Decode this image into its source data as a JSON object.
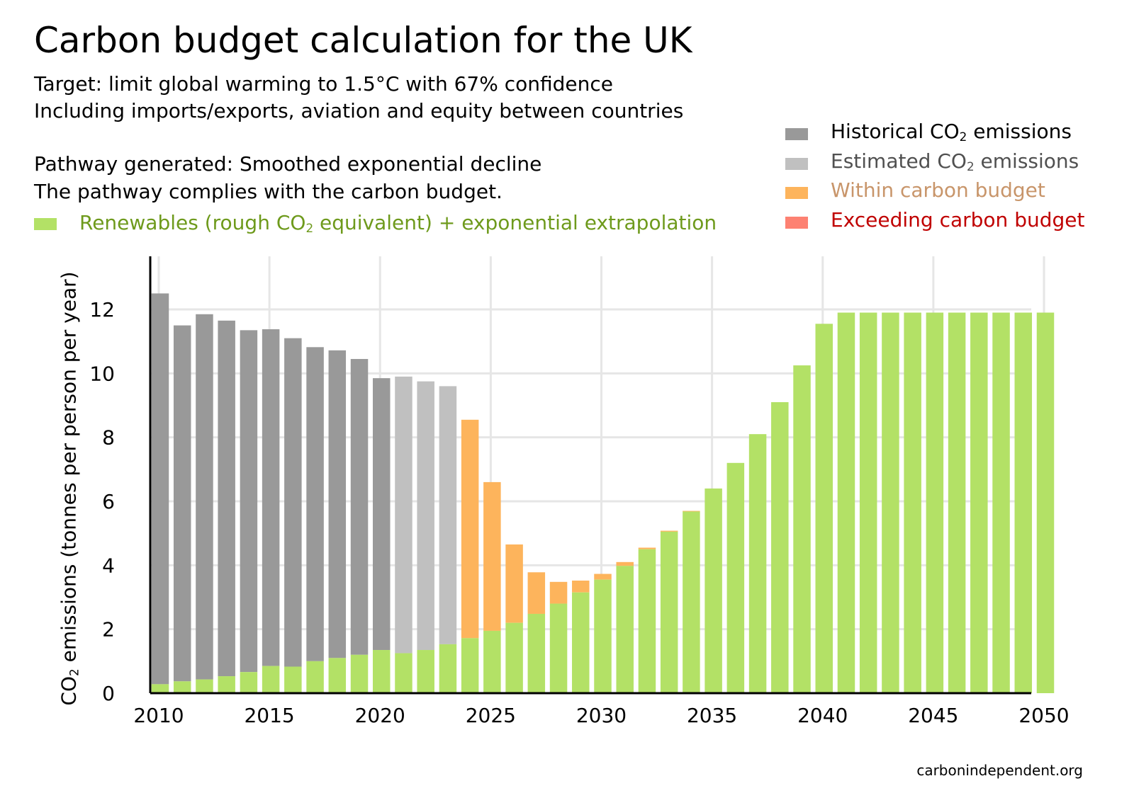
{
  "title": "Carbon budget calculation for the UK",
  "subtitle_lines": [
    "Target: limit global warming to 1.5°C with 67% confidence",
    "Including imports/exports, aviation and equity between countries",
    "Pathway generated: Smoothed exponential decline",
    "The pathway complies with the carbon budget."
  ],
  "legend": {
    "renewables": {
      "label_pre": "Renewables (rough CO",
      "label_sub": "2",
      "label_post": " equivalent) + exponential extrapolation",
      "color": "#b3e166",
      "text_color": "#6e9a1c"
    },
    "historical": {
      "label_pre": "Historical CO",
      "label_sub": "2",
      "label_post": " emissions",
      "color": "#999999",
      "text_color": "#000000"
    },
    "estimated": {
      "label_pre": "Estimated CO",
      "label_sub": "2",
      "label_post": " emissions",
      "color": "#c0c0c0",
      "text_color": "#505050"
    },
    "within": {
      "label": "Within carbon budget",
      "color": "#fdb45c",
      "text_color": "#c8956a"
    },
    "exceeding": {
      "label": "Exceeding carbon budget",
      "color": "#fd8172",
      "text_color": "#c00000"
    }
  },
  "credit": "carbonindependent.org",
  "chart_data": {
    "type": "bar",
    "stacked": true,
    "ylabel_pre": "CO",
    "ylabel_sub": "2",
    "ylabel_post": " emissions (tonnes per person per year)",
    "xlabel": "",
    "ylim": [
      0,
      13.6
    ],
    "yticks": [
      0,
      2,
      4,
      6,
      8,
      10,
      12
    ],
    "xlim": [
      2009.7,
      2050.5
    ],
    "xticks": [
      2010,
      2015,
      2020,
      2025,
      2030,
      2035,
      2040,
      2045,
      2050
    ],
    "grid": true,
    "legend_position": "top-right",
    "years": [
      2010,
      2011,
      2012,
      2013,
      2014,
      2015,
      2016,
      2017,
      2018,
      2019,
      2020,
      2021,
      2022,
      2023,
      2024,
      2025,
      2026,
      2027,
      2028,
      2029,
      2030,
      2031,
      2032,
      2033,
      2034,
      2035,
      2036,
      2037,
      2038,
      2039,
      2040,
      2041,
      2042,
      2043,
      2044,
      2045,
      2046,
      2047,
      2048,
      2049,
      2050
    ],
    "totals": [
      12.5,
      11.5,
      11.85,
      11.65,
      11.35,
      11.38,
      11.1,
      10.82,
      10.72,
      10.45,
      9.85,
      9.9,
      9.75,
      9.6,
      8.55,
      6.6,
      4.65,
      3.78,
      3.48,
      3.52,
      3.73,
      4.1,
      4.55,
      5.08,
      5.7,
      6.4,
      7.2,
      8.1,
      9.1,
      10.25,
      11.55,
      11.9,
      11.9,
      11.9,
      11.9,
      11.9,
      11.9,
      11.9,
      11.9,
      11.9,
      11.9
    ],
    "renewables": [
      0.28,
      0.37,
      0.43,
      0.53,
      0.66,
      0.85,
      0.83,
      1.0,
      1.1,
      1.2,
      1.35,
      1.25,
      1.35,
      1.53,
      1.72,
      1.95,
      2.2,
      2.48,
      2.8,
      3.15,
      3.55,
      3.98,
      4.5,
      5.05,
      5.68,
      6.4,
      7.2,
      8.1,
      9.1,
      10.25,
      11.55,
      11.9,
      11.9,
      11.9,
      11.9,
      11.9,
      11.9,
      11.9,
      11.9,
      11.9,
      11.9
    ],
    "categories": [
      "historical",
      "historical",
      "historical",
      "historical",
      "historical",
      "historical",
      "historical",
      "historical",
      "historical",
      "historical",
      "historical",
      "estimated",
      "estimated",
      "estimated",
      "within",
      "within",
      "within",
      "within",
      "within",
      "within",
      "within",
      "within",
      "within",
      "within",
      "within",
      "within",
      "within",
      "within",
      "within",
      "within",
      "within",
      "within",
      "within",
      "within",
      "within",
      "within",
      "within",
      "within",
      "within",
      "within",
      "within"
    ]
  }
}
